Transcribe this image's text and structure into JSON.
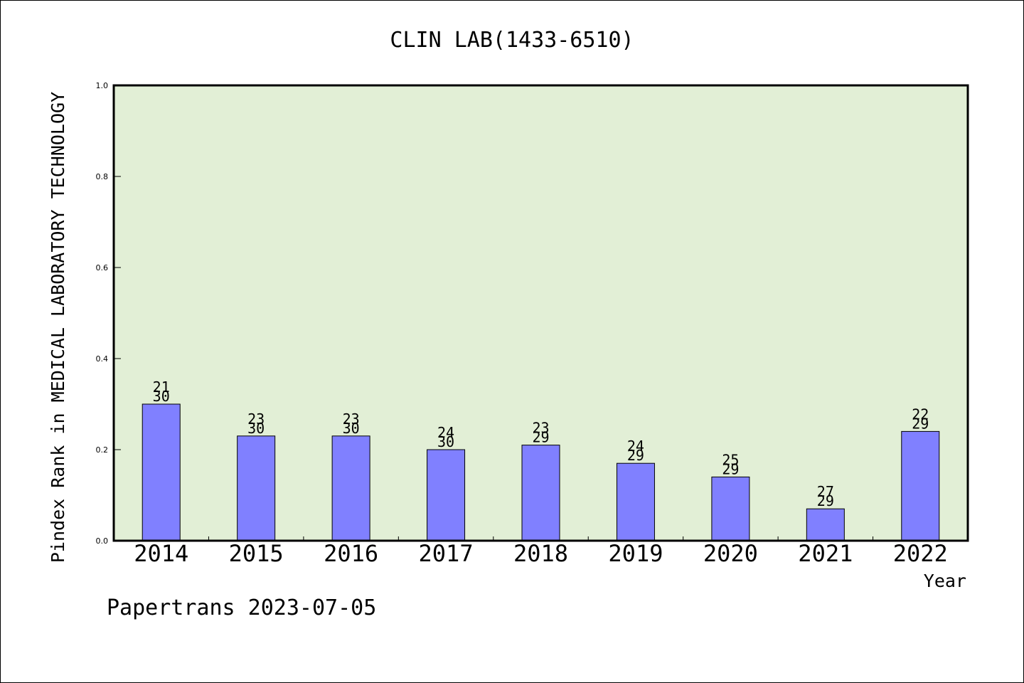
{
  "chart_data": {
    "type": "bar",
    "title": "CLIN LAB(1433-6510)",
    "xlabel": "Year",
    "ylabel": "Pindex Rank in MEDICAL LABORATORY TECHNOLOGY",
    "categories": [
      "2014",
      "2015",
      "2016",
      "2017",
      "2018",
      "2019",
      "2020",
      "2021",
      "2022"
    ],
    "values": [
      0.3,
      0.23,
      0.23,
      0.2,
      0.21,
      0.17,
      0.14,
      0.07,
      0.24
    ],
    "rank": [
      "21",
      "23",
      "23",
      "24",
      "23",
      "24",
      "25",
      "27",
      "22"
    ],
    "total": [
      "30",
      "30",
      "30",
      "30",
      "29",
      "29",
      "29",
      "29",
      "29"
    ],
    "ylim": [
      0,
      1.0
    ],
    "yticks": [
      "0.0",
      "0.2",
      "0.4",
      "0.6",
      "0.8",
      "1.0"
    ],
    "grid": false,
    "legend": "none",
    "colors": {
      "bar": "#8080ff",
      "plot_bg": "#e2efd6",
      "axis": "#000000"
    }
  },
  "footer": {
    "credit": "Papertrans 2023-07-05"
  }
}
